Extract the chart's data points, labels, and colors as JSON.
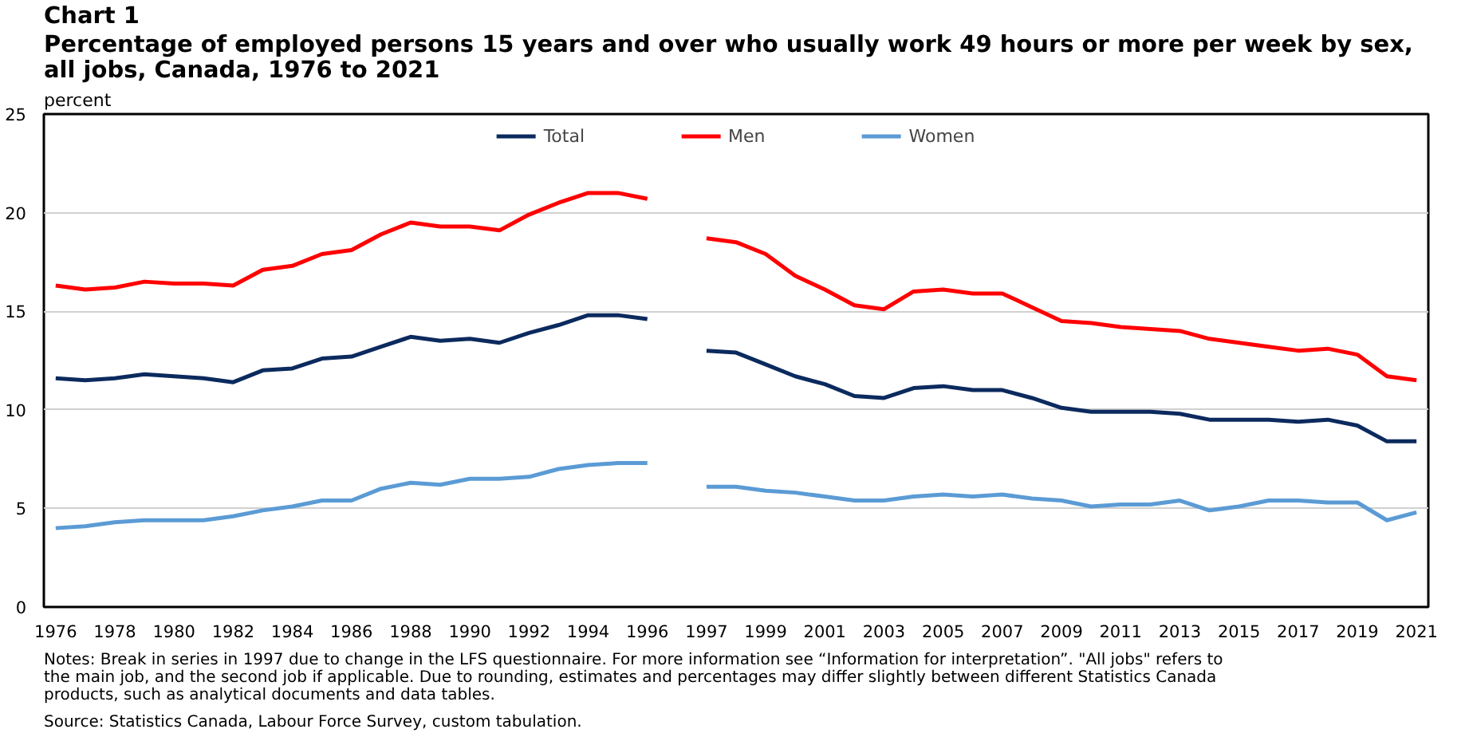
{
  "chart_data": {
    "type": "line",
    "title": "Chart 1",
    "subtitle": "Percentage of employed persons 15 years and over who usually work 49 hours or more per week by sex, all jobs, Canada, 1976 to 2021",
    "ylabel": "percent",
    "categories": [
      "1976",
      null,
      "1978",
      null,
      "1980",
      null,
      "1982",
      null,
      "1984",
      null,
      "1986",
      null,
      "1988",
      null,
      "1990",
      null,
      "1992",
      null,
      "1994",
      null,
      "1996",
      null,
      "1997",
      null,
      "1999",
      null,
      "2001",
      null,
      "2003",
      null,
      "2005",
      null,
      "2007",
      null,
      "2009",
      null,
      "2011",
      null,
      "2013",
      null,
      "2015",
      null,
      "2017",
      null,
      "2019",
      null,
      "2021"
    ],
    "series": [
      {
        "name": "Total",
        "color": "#0b2a5e",
        "values": [
          11.6,
          11.5,
          11.6,
          11.8,
          11.7,
          11.6,
          11.4,
          12.0,
          12.1,
          12.6,
          12.7,
          13.2,
          13.7,
          13.5,
          13.6,
          13.4,
          13.9,
          14.3,
          14.8,
          14.8,
          14.6,
          null,
          13.0,
          12.9,
          12.3,
          11.7,
          11.3,
          10.7,
          10.6,
          11.1,
          11.2,
          11.0,
          11.0,
          10.6,
          10.1,
          9.9,
          9.9,
          9.9,
          9.8,
          9.5,
          9.5,
          9.5,
          9.4,
          9.5,
          9.2,
          8.4,
          8.4
        ]
      },
      {
        "name": "Men",
        "color": "#ff0000",
        "values": [
          16.3,
          16.1,
          16.2,
          16.5,
          16.4,
          16.4,
          16.3,
          17.1,
          17.3,
          17.9,
          18.1,
          18.9,
          19.5,
          19.3,
          19.3,
          19.1,
          19.9,
          20.5,
          21.0,
          21.0,
          20.7,
          null,
          18.7,
          18.5,
          17.9,
          16.8,
          16.1,
          15.3,
          15.1,
          16.0,
          16.1,
          15.9,
          15.9,
          15.2,
          14.5,
          14.4,
          14.2,
          14.1,
          14.0,
          13.6,
          13.4,
          13.2,
          13.0,
          13.1,
          12.8,
          11.7,
          11.5
        ]
      },
      {
        "name": "Women",
        "color": "#5b9bd5",
        "values": [
          4.0,
          4.1,
          4.3,
          4.4,
          4.4,
          4.4,
          4.6,
          4.9,
          5.1,
          5.4,
          5.4,
          6.0,
          6.3,
          6.2,
          6.5,
          6.5,
          6.6,
          7.0,
          7.2,
          7.3,
          7.3,
          null,
          6.1,
          6.1,
          5.9,
          5.8,
          5.6,
          5.4,
          5.4,
          5.6,
          5.7,
          5.6,
          5.7,
          5.5,
          5.4,
          5.1,
          5.2,
          5.2,
          5.4,
          4.9,
          5.1,
          5.4,
          5.4,
          5.3,
          5.3,
          4.4,
          4.8
        ]
      }
    ],
    "ylim": [
      0,
      25
    ],
    "yticks": [
      0,
      5,
      10,
      15,
      20,
      25
    ],
    "grid": "y",
    "legend": "top",
    "line_style": "solid",
    "marker": "none",
    "annotations": [
      "Notes: Break in series in 1997 due to change in the LFS questionnaire. For more information see “Information for interpretation”. \"All jobs\" refers to the main job, and the second job if applicable. Due to rounding, estimates and percentages may differ slightly between different Statistics Canada products, such as analytical documents and data tables.",
      "Source: Statistics Canada, Labour Force Survey, custom tabulation."
    ]
  }
}
